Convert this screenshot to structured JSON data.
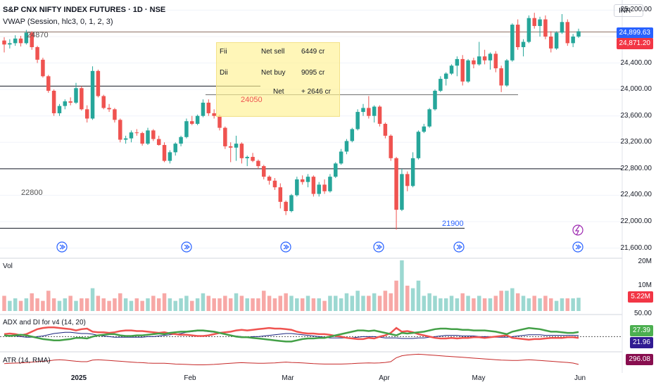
{
  "header": {
    "title": "S&P CNX NIFTY INDEX FUTURES · 1D · NSE",
    "indicator": "VWAP (Session, hlc3, 0, 1, 2, 3)",
    "currency": "INR"
  },
  "price_labels": {
    "badge_upper": "24,899.63",
    "badge_lower": "24,871.20"
  },
  "annotations": {
    "level_24870": "24870",
    "level_24050": "24050",
    "level_22800": "22800",
    "level_21900": "21900"
  },
  "flow_table": {
    "rows": [
      {
        "who": "Fii",
        "action": "Net sell",
        "amount": "6449 cr"
      },
      {
        "who": "Dii",
        "action": "Net buy",
        "amount": "9095 cr"
      },
      {
        "who": "",
        "action": "Net",
        "amount": "+ 2646 cr"
      }
    ]
  },
  "volume_pane": {
    "label": "Vol",
    "axis_top": "20M",
    "axis_mid": "10M",
    "badge": "5.22M"
  },
  "adx_pane": {
    "label": "ADX and DI for v4 (14, 20)",
    "axis_top": "50.00",
    "badge_green": "27.39",
    "badge_navy": "21.96"
  },
  "atr_pane": {
    "label": "ATR (14, RMA)",
    "badge": "296.08"
  },
  "colors": {
    "up": "#26a69a",
    "down": "#ef5350",
    "volume_up": "#9cd8d1",
    "volume_down": "#f7a8a6",
    "di_plus": "#43a047",
    "di_minus": "#ef5350",
    "adx": "#1a237e",
    "atr": "#c62828",
    "level_line": "#131722",
    "resistance_line": "#8d6e63",
    "flow_table_bg": "#fff3a0",
    "badge_blue": "#2962ff",
    "badge_red": "#f23645",
    "badge_green": "#4caf50",
    "badge_navy": "#311b92",
    "badge_dark_red": "#880e4f"
  },
  "chart_data": {
    "type": "candlestick",
    "title": "S&P CNX NIFTY INDEX FUTURES · 1D · NSE",
    "ylim": [
      21500,
      25300
    ],
    "y_ticks": [
      "25,200.00",
      "24,800.00",
      "24,400.00",
      "24,000.00",
      "23,600.00",
      "23,200.00",
      "22,800.00",
      "22,400.00",
      "22,000.00",
      "21,600.00"
    ],
    "x_ticks": [
      "2025",
      "Feb",
      "Mar",
      "Apr",
      "May",
      "Jun"
    ],
    "horizontal_levels": [
      24870,
      24050,
      22800,
      21900,
      23920
    ],
    "candles": [
      [
        24740,
        24790,
        24560,
        24680
      ],
      [
        24680,
        24760,
        24620,
        24700
      ],
      [
        24700,
        24820,
        24660,
        24770
      ],
      [
        24770,
        24810,
        24650,
        24700
      ],
      [
        24700,
        24900,
        24680,
        24860
      ],
      [
        24860,
        24880,
        24600,
        24640
      ],
      [
        24640,
        24660,
        24400,
        24450
      ],
      [
        24450,
        24480,
        24180,
        24200
      ],
      [
        24200,
        24220,
        23950,
        23980
      ],
      [
        23980,
        24000,
        23600,
        23640
      ],
      [
        23640,
        23780,
        23600,
        23750
      ],
      [
        23750,
        23850,
        23700,
        23820
      ],
      [
        23820,
        23880,
        23760,
        23800
      ],
      [
        23800,
        24100,
        23780,
        24020
      ],
      [
        24020,
        24050,
        23680,
        23700
      ],
      [
        23700,
        23760,
        23500,
        23560
      ],
      [
        23560,
        24350,
        23540,
        24280
      ],
      [
        24280,
        24300,
        23880,
        23900
      ],
      [
        23900,
        23920,
        23700,
        23720
      ],
      [
        23720,
        23780,
        23660,
        23700
      ],
      [
        23700,
        23720,
        23500,
        23540
      ],
      [
        23540,
        23560,
        23200,
        23240
      ],
      [
        23240,
        23300,
        23180,
        23260
      ],
      [
        23260,
        23380,
        23200,
        23350
      ],
      [
        23350,
        23400,
        23300,
        23340
      ],
      [
        23340,
        23360,
        23150,
        23180
      ],
      [
        23180,
        23420,
        23160,
        23380
      ],
      [
        23380,
        23400,
        23220,
        23250
      ],
      [
        23250,
        23300,
        23150,
        23160
      ],
      [
        23160,
        23200,
        22900,
        22920
      ],
      [
        22920,
        23080,
        22880,
        23050
      ],
      [
        23050,
        23200,
        23000,
        23180
      ],
      [
        23180,
        23300,
        23140,
        23280
      ],
      [
        23280,
        23560,
        23260,
        23520
      ],
      [
        23520,
        23600,
        23460,
        23480
      ],
      [
        23480,
        23620,
        23460,
        23600
      ],
      [
        23600,
        23850,
        23580,
        23800
      ],
      [
        23800,
        23850,
        23600,
        23640
      ],
      [
        23640,
        23700,
        23560,
        23600
      ],
      [
        23600,
        23620,
        23380,
        23420
      ],
      [
        23420,
        23440,
        23100,
        23140
      ],
      [
        23140,
        23200,
        22900,
        23120
      ],
      [
        23120,
        23300,
        22920,
        23180
      ],
      [
        23180,
        23200,
        22880,
        22960
      ],
      [
        22960,
        23000,
        22840,
        22980
      ],
      [
        22980,
        23040,
        22900,
        22920
      ],
      [
        22920,
        22940,
        22800,
        22840
      ],
      [
        22840,
        22860,
        22640,
        22680
      ],
      [
        22680,
        22700,
        22560,
        22620
      ],
      [
        22620,
        22660,
        22480,
        22520
      ],
      [
        22520,
        22580,
        22200,
        22300
      ],
      [
        22300,
        22320,
        22100,
        22160
      ],
      [
        22160,
        22420,
        22140,
        22400
      ],
      [
        22400,
        22680,
        22380,
        22640
      ],
      [
        22640,
        22700,
        22560,
        22600
      ],
      [
        22600,
        22720,
        22520,
        22680
      ],
      [
        22680,
        22700,
        22380,
        22420
      ],
      [
        22420,
        22600,
        22380,
        22560
      ],
      [
        22560,
        22640,
        22420,
        22460
      ],
      [
        22460,
        22720,
        22440,
        22680
      ],
      [
        22680,
        22900,
        22660,
        22880
      ],
      [
        22880,
        23100,
        22860,
        23060
      ],
      [
        23060,
        23250,
        23020,
        23220
      ],
      [
        23220,
        23420,
        23200,
        23400
      ],
      [
        23400,
        23700,
        23380,
        23660
      ],
      [
        23660,
        23780,
        23600,
        23720
      ],
      [
        23720,
        23900,
        23560,
        23600
      ],
      [
        23600,
        23760,
        23500,
        23740
      ],
      [
        23740,
        23760,
        23440,
        23480
      ],
      [
        23480,
        23500,
        23260,
        23300
      ],
      [
        23300,
        23320,
        22920,
        22960
      ],
      [
        22960,
        22980,
        21880,
        22180
      ],
      [
        22180,
        22800,
        22160,
        22720
      ],
      [
        22720,
        22760,
        22460,
        22540
      ],
      [
        22540,
        23050,
        22520,
        22960
      ],
      [
        22960,
        23380,
        22940,
        23360
      ],
      [
        23360,
        23480,
        23340,
        23440
      ],
      [
        23440,
        23720,
        23420,
        23700
      ],
      [
        23700,
        24000,
        23680,
        23980
      ],
      [
        23980,
        24200,
        23960,
        24160
      ],
      [
        24160,
        24260,
        24060,
        24240
      ],
      [
        24240,
        24380,
        24220,
        24360
      ],
      [
        24360,
        24500,
        24200,
        24460
      ],
      [
        24460,
        24520,
        24060,
        24120
      ],
      [
        24120,
        24460,
        24100,
        24440
      ],
      [
        24440,
        24480,
        24320,
        24380
      ],
      [
        24380,
        24720,
        24360,
        24500
      ],
      [
        24500,
        24600,
        24380,
        24440
      ],
      [
        24440,
        24560,
        24300,
        24540
      ],
      [
        24540,
        24580,
        24260,
        24320
      ],
      [
        24320,
        24360,
        23960,
        24060
      ],
      [
        24060,
        24460,
        24040,
        24440
      ],
      [
        24440,
        25000,
        24420,
        24980
      ],
      [
        24980,
        25060,
        24600,
        24640
      ],
      [
        24640,
        24760,
        24500,
        24720
      ],
      [
        24720,
        25120,
        24700,
        25080
      ],
      [
        25080,
        25160,
        24920,
        24960
      ],
      [
        24960,
        25100,
        24800,
        25060
      ],
      [
        25060,
        25120,
        24760,
        24800
      ],
      [
        24800,
        24880,
        24560,
        24620
      ],
      [
        24620,
        24880,
        24600,
        24860
      ],
      [
        24860,
        25140,
        24840,
        25020
      ],
      [
        25020,
        25060,
        24660,
        24700
      ],
      [
        24700,
        24840,
        24640,
        24800
      ],
      [
        24800,
        24920,
        24780,
        24880
      ]
    ],
    "volume": [
      6,
      4,
      5,
      4,
      5,
      7,
      5,
      4,
      8,
      5,
      4,
      5,
      6,
      4,
      5,
      5,
      9,
      6,
      5,
      4,
      5,
      7,
      5,
      4,
      5,
      4,
      5,
      6,
      5,
      7,
      5,
      4,
      5,
      6,
      4,
      5,
      7,
      6,
      5,
      5,
      6,
      5,
      7,
      6,
      5,
      5,
      5,
      8,
      6,
      5,
      6,
      7,
      6,
      5,
      5,
      6,
      5,
      5,
      4,
      6,
      6,
      5,
      7,
      6,
      8,
      6,
      6,
      7,
      6,
      8,
      7,
      12,
      20,
      10,
      9,
      12,
      6,
      7,
      6,
      5,
      5,
      6,
      5,
      7,
      6,
      5,
      6,
      5,
      5,
      6,
      8,
      8,
      9,
      7,
      6,
      5,
      6,
      5,
      6,
      5,
      4,
      5,
      5,
      5,
      5.22
    ],
    "di_plus": [
      22,
      21,
      22,
      23,
      22,
      20,
      18,
      16,
      15,
      14,
      14,
      15,
      16,
      18,
      18,
      17,
      20,
      22,
      23,
      24,
      24,
      22,
      21,
      21,
      22,
      22,
      23,
      24,
      25,
      24,
      26,
      27,
      28,
      28,
      29,
      30,
      30,
      29,
      28,
      26,
      24,
      22,
      20,
      19,
      19,
      18,
      17,
      16,
      15,
      14,
      13,
      12,
      12,
      14,
      16,
      17,
      17,
      18,
      18,
      20,
      22,
      24,
      26,
      28,
      30,
      30,
      29,
      30,
      28,
      26,
      24,
      22,
      26,
      25,
      26,
      27,
      28,
      30,
      32,
      33,
      33,
      32,
      32,
      31,
      31,
      30,
      30,
      30,
      29,
      28,
      26,
      24,
      28,
      30,
      32,
      34,
      33,
      32,
      30,
      28,
      28,
      27,
      26,
      26,
      27.39
    ],
    "di_minus": [
      24,
      25,
      24,
      22,
      24,
      28,
      32,
      34,
      35,
      35,
      34,
      33,
      32,
      30,
      32,
      33,
      28,
      27,
      27,
      26,
      27,
      29,
      30,
      30,
      29,
      29,
      28,
      27,
      26,
      27,
      25,
      24,
      23,
      23,
      22,
      21,
      21,
      22,
      24,
      26,
      27,
      28,
      30,
      31,
      30,
      31,
      32,
      33,
      34,
      33,
      33,
      32,
      31,
      28,
      26,
      25,
      25,
      24,
      24,
      23,
      21,
      20,
      18,
      17,
      16,
      16,
      18,
      17,
      20,
      22,
      26,
      34,
      28,
      29,
      27,
      24,
      22,
      20,
      18,
      17,
      17,
      18,
      17,
      18,
      18,
      19,
      19,
      18,
      19,
      20,
      21,
      22,
      18,
      17,
      16,
      15,
      16,
      16,
      17,
      18,
      18,
      18,
      19,
      19,
      18
    ],
    "adx": [
      22,
      22,
      21,
      20,
      19,
      19,
      20,
      21,
      23,
      25,
      26,
      27,
      27,
      26,
      25,
      25,
      24,
      22,
      21,
      20,
      19,
      19,
      19,
      19,
      19,
      19,
      20,
      20,
      21,
      22,
      23,
      24,
      25,
      27,
      28,
      29,
      29,
      28,
      27,
      26,
      24,
      22,
      21,
      20,
      19,
      20,
      20,
      21,
      22,
      23,
      24,
      25,
      25,
      24,
      23,
      22,
      21,
      20,
      19,
      18,
      18,
      18,
      18,
      18,
      19,
      20,
      20,
      20,
      19,
      18,
      18,
      18,
      17,
      17,
      17,
      18,
      18,
      19,
      20,
      21,
      22,
      22,
      22,
      21,
      21,
      21,
      20,
      20,
      20,
      19,
      19,
      19,
      20,
      21,
      22,
      23,
      23,
      23,
      22,
      22,
      22,
      22,
      22,
      22,
      21.96
    ],
    "atr": [
      300,
      302,
      303,
      304,
      305,
      308,
      310,
      312,
      314,
      318,
      320,
      318,
      315,
      312,
      310,
      310,
      318,
      320,
      318,
      316,
      314,
      312,
      310,
      308,
      306,
      305,
      303,
      302,
      302,
      302,
      300,
      298,
      297,
      296,
      295,
      294,
      294,
      295,
      296,
      298,
      300,
      302,
      304,
      305,
      304,
      303,
      302,
      302,
      303,
      304,
      306,
      308,
      306,
      305,
      304,
      302,
      300,
      299,
      298,
      298,
      298,
      298,
      299,
      300,
      302,
      303,
      304,
      303,
      304,
      306,
      310,
      330,
      340,
      344,
      346,
      348,
      346,
      344,
      342,
      340,
      338,
      336,
      334,
      332,
      330,
      328,
      326,
      324,
      322,
      320,
      318,
      317,
      316,
      316,
      318,
      320,
      318,
      316,
      314,
      312,
      310,
      308,
      306,
      303,
      296.08
    ]
  }
}
